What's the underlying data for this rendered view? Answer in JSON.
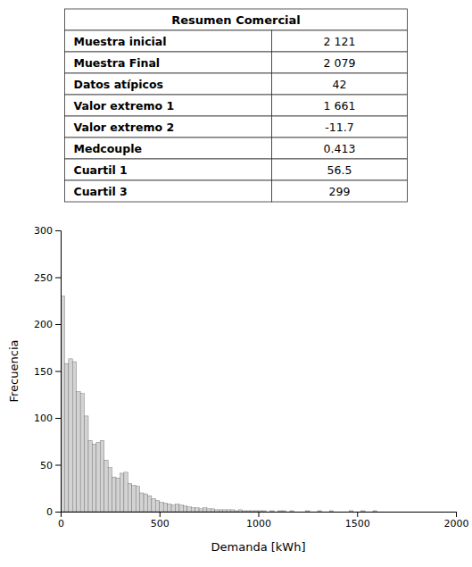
{
  "chart_data": [
    {
      "type": "table",
      "title": "Resumen Comercial",
      "categories": [
        "Muestra inicial",
        "Muestra Final",
        "Datos atípicos",
        "Valor extremo 1",
        "Valor extremo 2",
        "Medcouple",
        "Cuartil 1",
        "Cuartil 3"
      ],
      "values": [
        2121,
        2079,
        42,
        1661,
        -11.7,
        0.413,
        56.5,
        299
      ],
      "value_labels": [
        "2 121",
        "2 079",
        "42",
        "1 661",
        "-11.7",
        "0.413",
        "56.5",
        "299"
      ]
    },
    {
      "type": "histogram",
      "xlabel": "Demanda [kWh]",
      "ylabel": "Frecuencia",
      "color": "#d3d3d3",
      "bins": [
        0,
        20,
        40,
        60,
        80,
        100,
        120,
        140,
        160,
        180,
        200,
        220,
        240,
        260,
        280,
        300,
        320,
        340,
        360,
        380,
        400,
        420,
        440,
        460,
        480,
        500,
        520,
        540,
        560,
        580,
        600,
        620,
        640,
        660,
        680,
        700,
        720,
        740,
        760,
        780,
        800,
        820,
        840,
        860,
        880,
        900,
        920,
        940,
        960,
        980,
        1000,
        1020,
        1040,
        1060,
        1080,
        1100,
        1120,
        1140,
        1160,
        1180,
        1200,
        1220,
        1240,
        1260,
        1280,
        1300,
        1320,
        1340,
        1360,
        1380,
        1400,
        1420,
        1440,
        1460,
        1480,
        1500,
        1520,
        1540,
        1560,
        1580,
        1600
      ],
      "values": [
        230,
        158,
        163,
        160,
        128,
        126,
        102,
        76,
        72,
        74,
        76,
        55,
        47,
        37,
        36,
        41,
        42,
        30,
        28,
        27,
        20,
        19,
        17,
        14,
        12,
        10,
        9,
        8,
        7,
        8,
        7,
        6,
        5,
        4,
        4,
        3,
        4,
        3,
        3,
        2,
        2,
        2,
        2,
        2,
        1,
        2,
        1,
        1,
        1,
        1,
        1,
        1,
        0,
        1,
        0,
        1,
        1,
        0,
        1,
        0,
        0,
        0,
        1,
        0,
        0,
        1,
        0,
        0,
        1,
        0,
        0,
        0,
        0,
        1,
        0,
        0,
        1,
        0,
        0,
        1
      ],
      "xlim": [
        0,
        2000
      ],
      "ylim": [
        0,
        300
      ],
      "xticks": [
        0,
        500,
        1000,
        1500,
        2000
      ],
      "yticks": [
        0,
        50,
        100,
        150,
        200,
        250,
        300
      ]
    }
  ]
}
